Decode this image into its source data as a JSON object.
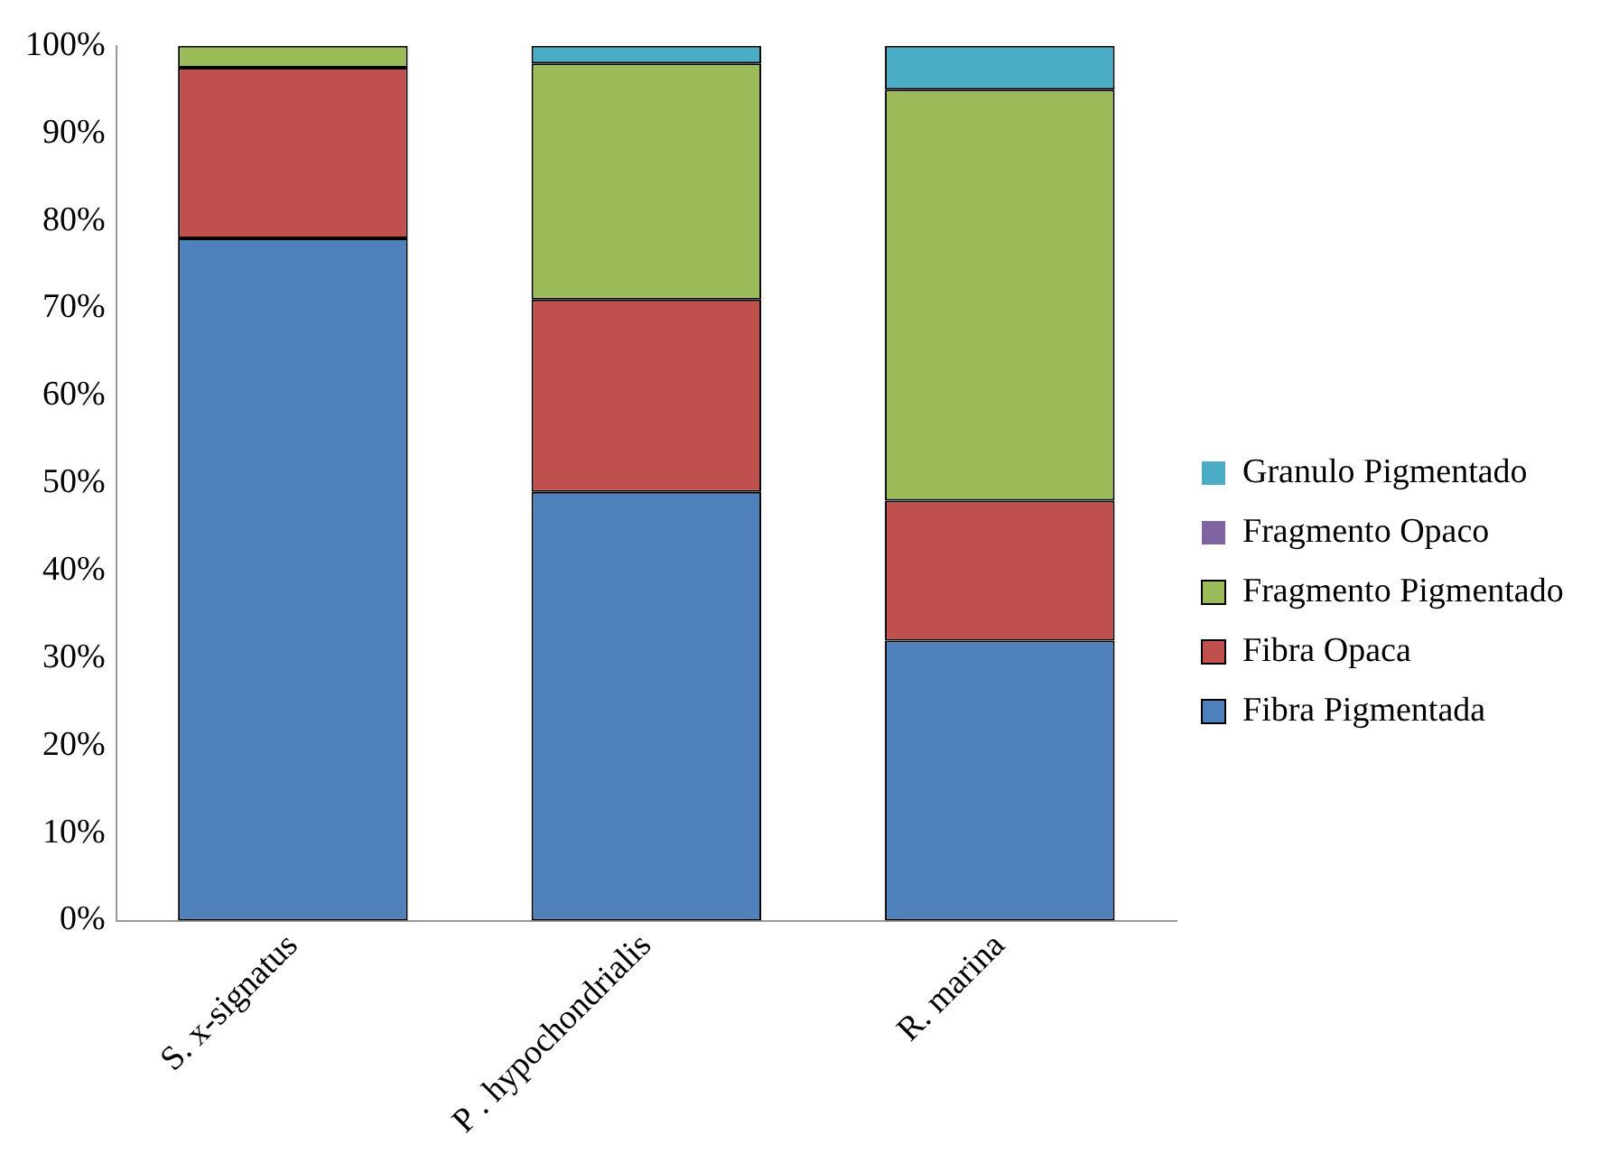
{
  "chart_data": {
    "type": "bar",
    "stacked": true,
    "categories": [
      "S. x-signatus",
      "P . hypochondrialis",
      "R. marina"
    ],
    "series": [
      {
        "name": "Fibra Pigmentada",
        "color": "#4f81bd",
        "values": [
          78,
          49,
          32
        ]
      },
      {
        "name": "Fibra Opaca",
        "color": "#c0504d",
        "values": [
          19.5,
          22,
          16
        ]
      },
      {
        "name": "Fragmento Pigmentado",
        "color": "#9bbb59",
        "values": [
          2.5,
          27,
          47
        ]
      },
      {
        "name": "Fragmento Opaco",
        "color": "#8064a2",
        "values": [
          0,
          0,
          0
        ]
      },
      {
        "name": "Granulo Pigmentado",
        "color": "#4bacc6",
        "values": [
          0,
          2,
          5
        ]
      }
    ],
    "ylim": [
      0,
      100
    ],
    "yticks": [
      {
        "value": 0,
        "label": "0%"
      },
      {
        "value": 10,
        "label": "10%"
      },
      {
        "value": 20,
        "label": "20%"
      },
      {
        "value": 30,
        "label": "30%"
      },
      {
        "value": 40,
        "label": "40%"
      },
      {
        "value": 50,
        "label": "50%"
      },
      {
        "value": 60,
        "label": "60%"
      },
      {
        "value": 70,
        "label": "70%"
      },
      {
        "value": 80,
        "label": "80%"
      },
      {
        "value": 90,
        "label": "90%"
      },
      {
        "value": 100,
        "label": "100%"
      }
    ],
    "grid": false,
    "legend": "right"
  }
}
